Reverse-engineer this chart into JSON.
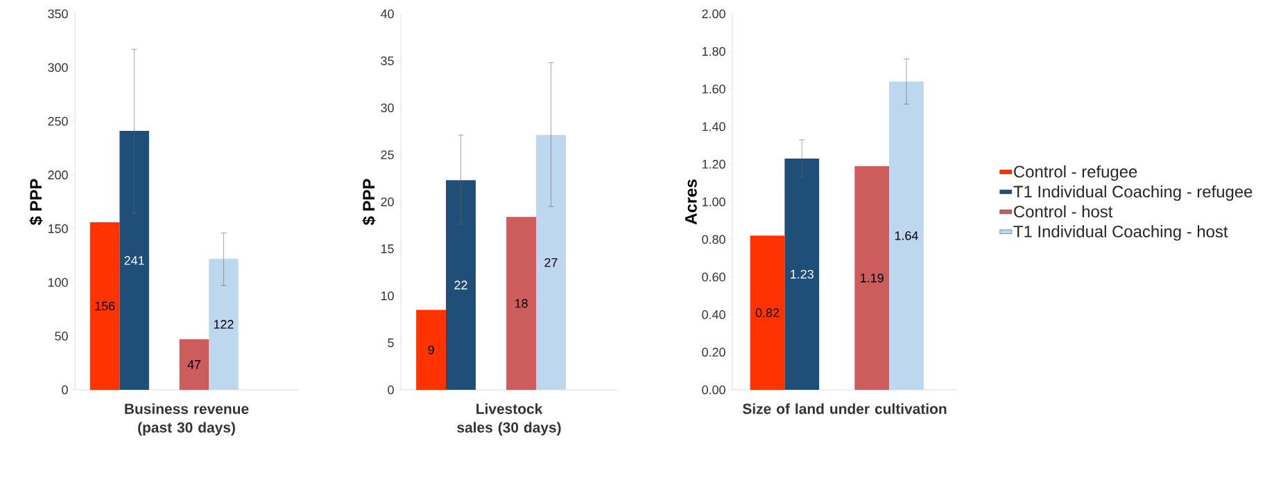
{
  "chart_data": [
    {
      "type": "bar",
      "xlabel": "Business revenue (past 30 days)",
      "ylabel": "$ PPP",
      "categories": [
        null,
        null
      ],
      "ylim": [
        0,
        350
      ],
      "yticks": [
        0,
        50,
        100,
        150,
        200,
        250,
        300,
        350
      ],
      "series": [
        {
          "color": "#ff3300",
          "values": [
            156,
            null
          ],
          "value_labels": [
            "156",
            null
          ]
        },
        {
          "color": "#1f4e79",
          "values": [
            241,
            null
          ],
          "value_labels": [
            "241",
            null
          ],
          "errors": [
            [
              164,
              317
            ],
            null
          ]
        },
        {
          "color": "#cd5c5c",
          "values": [
            null,
            47
          ],
          "value_labels": [
            null,
            "47"
          ]
        },
        {
          "color": "#bdd7ee",
          "values": [
            null,
            122
          ],
          "value_labels": [
            null,
            "122"
          ],
          "errors": [
            null,
            [
              97,
              146
            ]
          ]
        }
      ]
    },
    {
      "type": "bar",
      "xlabel": "Livestock sales (30 days)",
      "ylabel": "$ PPP",
      "categories": [
        null,
        null
      ],
      "ylim": [
        0,
        40
      ],
      "yticks": [
        0,
        5,
        10,
        15,
        20,
        25,
        30,
        35,
        40
      ],
      "series": [
        {
          "color": "#ff3300",
          "values": [
            8.5,
            null
          ],
          "value_labels": [
            "9",
            null
          ]
        },
        {
          "color": "#1f4e79",
          "values": [
            22.3,
            null
          ],
          "value_labels": [
            "22",
            null
          ],
          "errors": [
            [
              17.6,
              27.1
            ],
            null
          ]
        },
        {
          "color": "#cd5c5c",
          "values": [
            null,
            18.4
          ],
          "value_labels": [
            null,
            "18"
          ]
        },
        {
          "color": "#bdd7ee",
          "values": [
            null,
            27.1
          ],
          "value_labels": [
            null,
            "27"
          ],
          "errors": [
            null,
            [
              19.5,
              34.8
            ]
          ]
        }
      ]
    },
    {
      "type": "bar",
      "xlabel": "Size of land under cultivation",
      "ylabel": "Acres",
      "categories": [
        null,
        null
      ],
      "ylim": [
        0,
        2
      ],
      "legend": "right",
      "yticks": [
        {
          "value": 0,
          "label": "0.00"
        },
        {
          "value": 0.2,
          "label": "0.20"
        },
        {
          "value": 0.4,
          "label": "0.40"
        },
        {
          "value": 0.6,
          "label": "0.60"
        },
        {
          "value": 0.8,
          "label": "0.80"
        },
        {
          "value": 1,
          "label": "1.00"
        },
        {
          "value": 1.2,
          "label": "1.20"
        },
        {
          "value": 1.4,
          "label": "1.40"
        },
        {
          "value": 1.6,
          "label": "1.60"
        },
        {
          "value": 1.8,
          "label": "1.80"
        },
        {
          "value": 2,
          "label": "2.00"
        }
      ],
      "series": [
        {
          "name": "Control - refugee",
          "color": "#ff3300",
          "values": [
            0.82,
            null
          ],
          "value_labels": [
            "0.82",
            null
          ]
        },
        {
          "name": "T1 Individual Coaching - refugee",
          "color": "#1f4e79",
          "values": [
            1.23,
            null
          ],
          "value_labels": [
            "1.23",
            null
          ],
          "errors": [
            [
              1.13,
              1.33
            ],
            null
          ]
        },
        {
          "name": "Control - host",
          "color": "#cd5c5c",
          "values": [
            null,
            1.19
          ],
          "value_labels": [
            null,
            "1.19"
          ]
        },
        {
          "name": "T1 Individual Coaching - host",
          "color": "#bdd7ee",
          "values": [
            null,
            1.64
          ],
          "value_labels": [
            null,
            "1.64"
          ],
          "errors": [
            null,
            [
              1.52,
              1.76
            ]
          ]
        }
      ]
    }
  ]
}
